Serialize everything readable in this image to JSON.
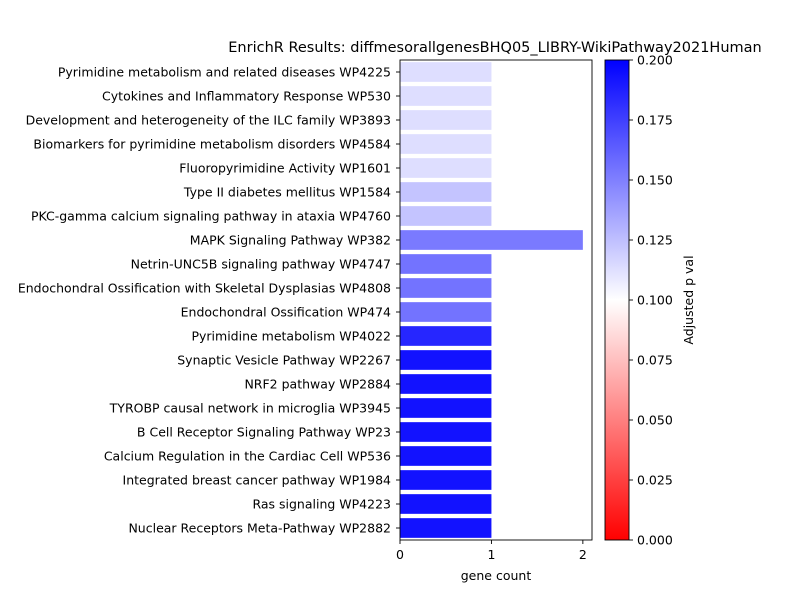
{
  "chart_data": {
    "type": "bar",
    "orientation": "horizontal",
    "title": "EnrichR Results: diffmesorallgenesBHQ05_LIBRY-WikiPathway2021Human",
    "xlabel": "gene count",
    "ylabel": "",
    "xlim": [
      0,
      2.1
    ],
    "x_ticks": [
      "0",
      "1",
      "2"
    ],
    "categories": [
      "Pyrimidine metabolism and related diseases WP4225",
      "Cytokines and Inflammatory Response WP530",
      "Development and heterogeneity of the ILC family WP3893",
      "Biomarkers for pyrimidine metabolism disorders WP4584",
      "Fluoropyrimidine Activity WP1601",
      "Type II diabetes mellitus WP1584",
      "PKC-gamma calcium signaling pathway in ataxia WP4760",
      "MAPK Signaling Pathway WP382",
      "Netrin-UNC5B signaling pathway WP4747",
      "Endochondral Ossification with Skeletal Dysplasias WP4808",
      "Endochondral Ossification WP474",
      "Pyrimidine metabolism WP4022",
      "Synaptic Vesicle Pathway WP2267",
      "NRF2 pathway WP2884",
      "TYROBP causal network in microglia WP3945",
      "B Cell Receptor Signaling Pathway WP23",
      "Calcium Regulation in the Cardiac Cell WP536",
      "Integrated breast cancer pathway WP1984",
      "Ras signaling WP4223",
      "Nuclear Receptors Meta-Pathway WP2882"
    ],
    "values": [
      1,
      1,
      1,
      1,
      1,
      1,
      1,
      2,
      1,
      1,
      1,
      1,
      1,
      1,
      1,
      1,
      1,
      1,
      1,
      1
    ],
    "adjusted_p_val": [
      0.113,
      0.113,
      0.113,
      0.113,
      0.113,
      0.123,
      0.123,
      0.152,
      0.155,
      0.155,
      0.155,
      0.185,
      0.193,
      0.193,
      0.193,
      0.193,
      0.193,
      0.193,
      0.193,
      0.193
    ],
    "colorbar": {
      "label": "Adjusted p val",
      "range": [
        0,
        0.2
      ],
      "ticks": [
        "0.000",
        "0.025",
        "0.050",
        "0.075",
        "0.100",
        "0.125",
        "0.150",
        "0.175",
        "0.200"
      ],
      "colormap": [
        "#ff0000",
        "#ffffff",
        "#0000ff"
      ]
    },
    "grid": false,
    "legend": "none"
  }
}
